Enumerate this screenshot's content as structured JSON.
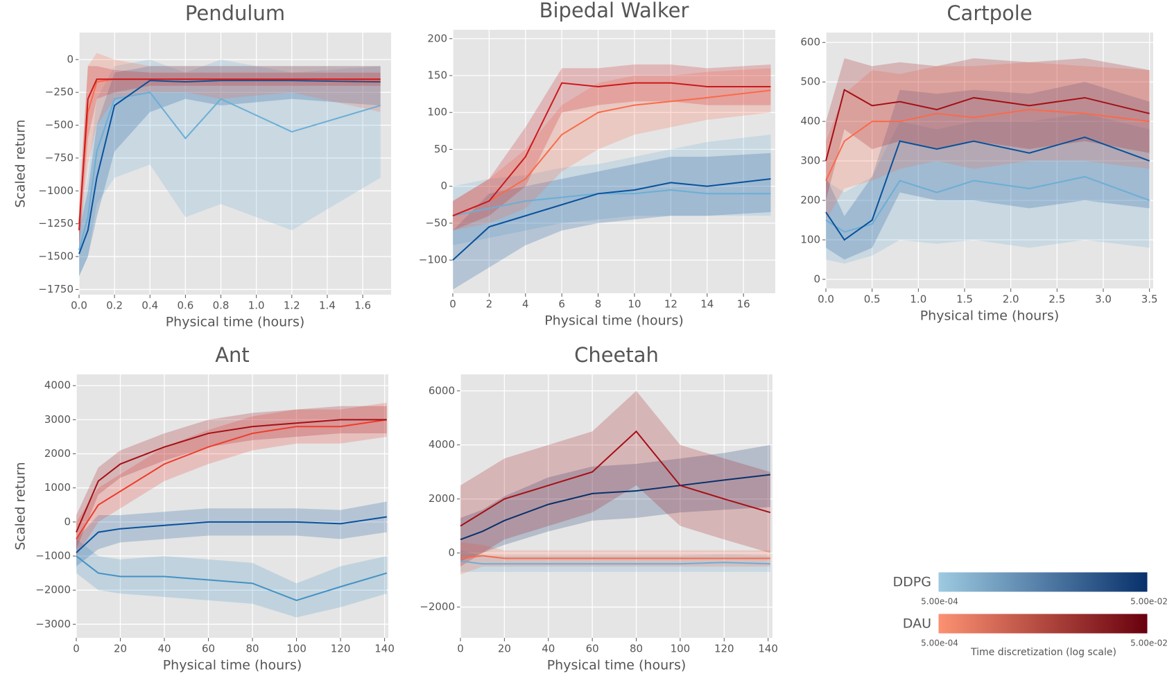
{
  "chart_data": [
    {
      "type": "line",
      "title": "Pendulum",
      "xlabel": "Physical time (hours)",
      "ylabel": "Scaled return",
      "x": [
        0,
        0.05,
        0.1,
        0.2,
        0.4,
        0.6,
        0.8,
        1.2,
        1.7
      ],
      "xlim": [
        0,
        1.76
      ],
      "ylim": [
        -1790,
        205
      ],
      "xticks": [
        {
          "value": 0,
          "label": "0.0"
        },
        0.2,
        0.4,
        0.6,
        0.8,
        {
          "value": 1,
          "label": "1.0"
        },
        1.2,
        1.4,
        1.6
      ],
      "yticks": [
        0,
        {
          "value": -250,
          "label": "−250"
        },
        {
          "value": -500,
          "label": "−500"
        },
        {
          "value": -750,
          "label": "−750"
        },
        {
          "value": -1000,
          "label": "−1000"
        },
        {
          "value": -1250,
          "label": "−1250"
        },
        {
          "value": -1500,
          "label": "−1500"
        },
        {
          "value": -1750,
          "label": "−1750"
        }
      ],
      "grid": true,
      "series": [
        {
          "color": "#6baed6",
          "values": [
            -1450,
            -1200,
            -700,
            -300,
            -250,
            -600,
            -300,
            -550,
            -350
          ],
          "lower": [
            -1650,
            -1500,
            -1100,
            -900,
            -800,
            -1200,
            -1100,
            -1300,
            -900
          ],
          "upper": [
            -1250,
            -900,
            -300,
            -50,
            0,
            -100,
            0,
            -100,
            -50
          ]
        },
        {
          "color": "#08519c",
          "values": [
            -1480,
            -1300,
            -900,
            -350,
            -160,
            -170,
            -160,
            -160,
            -170
          ],
          "lower": [
            -1650,
            -1500,
            -1200,
            -700,
            -400,
            -300,
            -350,
            -300,
            -350
          ],
          "upper": [
            -1300,
            -1000,
            -500,
            -100,
            -50,
            -50,
            -50,
            -50,
            -50
          ]
        },
        {
          "color": "#fb6a4a",
          "values": [
            -1250,
            -400,
            -170,
            -150,
            -150,
            -150,
            -150,
            -150,
            -160
          ],
          "lower": [
            -1400,
            -800,
            -500,
            -300,
            -250,
            -250,
            -300,
            -250,
            -400
          ],
          "upper": [
            -1100,
            -50,
            50,
            0,
            -50,
            -50,
            -50,
            -50,
            -50
          ]
        },
        {
          "color": "#cb181d",
          "values": [
            -1300,
            -300,
            -150,
            -150,
            -150,
            -150,
            -150,
            -150,
            -150
          ],
          "lower": [
            -1450,
            -600,
            -300,
            -250,
            -200,
            -200,
            -200,
            -200,
            -200
          ],
          "upper": [
            -1150,
            -50,
            -50,
            -80,
            -100,
            -100,
            -100,
            -100,
            -100
          ]
        }
      ]
    },
    {
      "type": "line",
      "title": "Bipedal Walker",
      "xlabel": "Physical time (hours)",
      "x": [
        0,
        2,
        4,
        6,
        8,
        10,
        12,
        14,
        17.5
      ],
      "xlim": [
        0,
        17.75
      ],
      "ylim": [
        -145,
        212
      ],
      "xticks": [
        0,
        2,
        4,
        6,
        8,
        10,
        12,
        14,
        16
      ],
      "yticks": [
        200,
        150,
        100,
        50,
        0,
        {
          "value": -50,
          "label": "−50"
        },
        {
          "value": -100,
          "label": "−100"
        }
      ],
      "grid": true,
      "series": [
        {
          "color": "#6baed6",
          "values": [
            -40,
            -30,
            -20,
            -15,
            -10,
            -10,
            -5,
            -10,
            -10
          ],
          "lower": [
            -80,
            -70,
            -60,
            -50,
            -45,
            -40,
            -40,
            -40,
            -40
          ],
          "upper": [
            0,
            10,
            15,
            25,
            30,
            40,
            50,
            60,
            70
          ]
        },
        {
          "color": "#08519c",
          "values": [
            -100,
            -55,
            -40,
            -25,
            -10,
            -5,
            5,
            0,
            10
          ],
          "lower": [
            -140,
            -110,
            -80,
            -60,
            -50,
            -45,
            -40,
            -40,
            -35
          ],
          "upper": [
            -60,
            -10,
            0,
            10,
            20,
            30,
            40,
            40,
            45
          ]
        },
        {
          "color": "#fb6a4a",
          "values": [
            -40,
            -20,
            10,
            70,
            100,
            110,
            115,
            120,
            130
          ],
          "lower": [
            -60,
            -50,
            -30,
            20,
            50,
            70,
            80,
            90,
            100
          ],
          "upper": [
            -20,
            10,
            50,
            110,
            140,
            150,
            150,
            155,
            160
          ]
        },
        {
          "color": "#cb181d",
          "values": [
            -40,
            -20,
            40,
            140,
            135,
            140,
            140,
            135,
            135
          ],
          "lower": [
            -60,
            -40,
            0,
            100,
            110,
            115,
            115,
            110,
            110
          ],
          "upper": [
            -20,
            10,
            80,
            160,
            160,
            165,
            165,
            160,
            165
          ]
        }
      ]
    },
    {
      "type": "line",
      "title": "Cartpole",
      "xlabel": "Physical time (hours)",
      "x": [
        0,
        0.2,
        0.5,
        0.8,
        1.2,
        1.6,
        2.2,
        2.8,
        3.5
      ],
      "xlim": [
        0,
        3.54
      ],
      "ylim": [
        -23,
        625
      ],
      "xticks": [
        {
          "value": 0,
          "label": "0.0"
        },
        0.5,
        {
          "value": 1,
          "label": "1.0"
        },
        1.5,
        {
          "value": 2,
          "label": "2.0"
        },
        2.5,
        {
          "value": 3,
          "label": "3.0"
        },
        3.5
      ],
      "yticks": [
        600,
        500,
        400,
        300,
        200,
        100,
        0
      ],
      "grid": true,
      "series": [
        {
          "color": "#6baed6",
          "values": [
            150,
            120,
            140,
            250,
            220,
            250,
            230,
            260,
            200
          ],
          "lower": [
            50,
            40,
            60,
            100,
            90,
            100,
            80,
            100,
            80
          ],
          "upper": [
            250,
            220,
            260,
            400,
            380,
            400,
            400,
            420,
            380
          ]
        },
        {
          "color": "#08519c",
          "values": [
            170,
            100,
            150,
            350,
            330,
            350,
            320,
            360,
            300
          ],
          "lower": [
            80,
            50,
            80,
            220,
            200,
            200,
            180,
            200,
            180
          ],
          "upper": [
            260,
            160,
            260,
            480,
            470,
            480,
            470,
            500,
            450
          ]
        },
        {
          "color": "#fb6a4a",
          "values": [
            250,
            350,
            400,
            400,
            420,
            410,
            430,
            420,
            400
          ],
          "lower": [
            150,
            230,
            250,
            280,
            300,
            280,
            300,
            300,
            280
          ],
          "upper": [
            350,
            470,
            530,
            520,
            540,
            540,
            550,
            540,
            530
          ]
        },
        {
          "color": "#a50f15",
          "values": [
            300,
            480,
            440,
            450,
            430,
            460,
            440,
            460,
            420
          ],
          "lower": [
            200,
            380,
            330,
            350,
            330,
            350,
            330,
            350,
            320
          ],
          "upper": [
            400,
            560,
            540,
            550,
            540,
            560,
            550,
            560,
            530
          ]
        }
      ]
    },
    {
      "type": "line",
      "title": "Ant",
      "xlabel": "Physical time (hours)",
      "ylabel": "Scaled return",
      "x": [
        0,
        10,
        20,
        40,
        60,
        80,
        100,
        120,
        141
      ],
      "xlim": [
        0,
        141.7
      ],
      "ylim": [
        -3400,
        4330
      ],
      "xticks": [
        0,
        20,
        40,
        60,
        80,
        100,
        120,
        140
      ],
      "yticks": [
        4000,
        3000,
        2000,
        1000,
        0,
        {
          "value": -1000,
          "label": "−1000"
        },
        {
          "value": -2000,
          "label": "−2000"
        },
        {
          "value": -3000,
          "label": "−3000"
        }
      ],
      "grid": true,
      "series": [
        {
          "color": "#4292c6",
          "values": [
            -1000,
            -1500,
            -1600,
            -1600,
            -1700,
            -1800,
            -2300,
            -1900,
            -1500
          ],
          "lower": [
            -1500,
            -2000,
            -2100,
            -2200,
            -2300,
            -2400,
            -2800,
            -2500,
            -2100
          ],
          "upper": [
            -500,
            -1000,
            -1100,
            -1000,
            -1100,
            -1200,
            -1800,
            -1300,
            -1000
          ]
        },
        {
          "color": "#08519c",
          "values": [
            -900,
            -300,
            -200,
            -100,
            0,
            0,
            0,
            -50,
            150
          ],
          "lower": [
            -1300,
            -800,
            -600,
            -500,
            -400,
            -400,
            -400,
            -500,
            -300
          ],
          "upper": [
            -500,
            200,
            200,
            300,
            400,
            400,
            400,
            350,
            600
          ]
        },
        {
          "color": "#ef3b2c",
          "values": [
            -500,
            500,
            900,
            1700,
            2200,
            2600,
            2800,
            2800,
            3000
          ],
          "lower": [
            -1000,
            0,
            400,
            1200,
            1700,
            2100,
            2300,
            2300,
            2500
          ],
          "upper": [
            0,
            1000,
            1400,
            2200,
            2700,
            3100,
            3300,
            3300,
            3500
          ]
        },
        {
          "color": "#a50f15",
          "values": [
            -300,
            1200,
            1700,
            2200,
            2600,
            2800,
            2900,
            3000,
            3000
          ],
          "lower": [
            -800,
            800,
            1300,
            1800,
            2200,
            2400,
            2500,
            2600,
            2600
          ],
          "upper": [
            200,
            1600,
            2100,
            2600,
            3000,
            3200,
            3300,
            3400,
            3400
          ]
        }
      ]
    },
    {
      "type": "line",
      "title": "Cheetah",
      "xlabel": "Physical time (hours)",
      "x": [
        0,
        10,
        20,
        40,
        60,
        80,
        100,
        120,
        141
      ],
      "xlim": [
        0,
        142
      ],
      "ylim": [
        -3140,
        6610
      ],
      "xticks": [
        0,
        20,
        40,
        60,
        80,
        100,
        120,
        140
      ],
      "yticks": [
        6000,
        4000,
        2000,
        0,
        {
          "value": -2000,
          "label": "−2000"
        }
      ],
      "grid": true,
      "series": [
        {
          "color": "#6baed6",
          "values": [
            -300,
            -400,
            -400,
            -400,
            -400,
            -400,
            -400,
            -350,
            -400
          ],
          "lower": [
            -700,
            -700,
            -700,
            -700,
            -700,
            -700,
            -700,
            -700,
            -700
          ],
          "upper": [
            100,
            -100,
            -100,
            -100,
            -100,
            -100,
            -100,
            -50,
            -100
          ]
        },
        {
          "color": "#08306b",
          "values": [
            500,
            800,
            1200,
            1800,
            2200,
            2300,
            2500,
            2700,
            2900
          ],
          "lower": [
            -300,
            0,
            300,
            800,
            1200,
            1300,
            1500,
            1600,
            1700
          ],
          "upper": [
            1300,
            1600,
            2100,
            2800,
            3200,
            3300,
            3500,
            3700,
            4000
          ]
        },
        {
          "color": "#fb6a4a",
          "values": [
            -200,
            -100,
            -200,
            -200,
            -200,
            -200,
            -200,
            -200,
            -200
          ],
          "lower": [
            -800,
            -500,
            -500,
            -500,
            -500,
            -500,
            -500,
            -500,
            -500
          ],
          "upper": [
            400,
            300,
            100,
            100,
            100,
            100,
            100,
            100,
            100
          ]
        },
        {
          "color": "#a50f15",
          "values": [
            1000,
            1500,
            2000,
            2500,
            3000,
            4500,
            2500,
            2000,
            1500
          ],
          "lower": [
            -500,
            0,
            500,
            1000,
            1500,
            2500,
            1000,
            500,
            0
          ],
          "upper": [
            2500,
            3000,
            3500,
            4000,
            4500,
            6000,
            4000,
            3500,
            3000
          ]
        }
      ]
    }
  ],
  "legend": {
    "items": [
      {
        "label": "DDPG",
        "colors": [
          "#9ecae1",
          "#08306b"
        ]
      },
      {
        "label": "DAU",
        "colors": [
          "#fc9272",
          "#67000d"
        ]
      }
    ],
    "min_label": "5.00e-04",
    "max_label": "5.00e-02",
    "label": "Time discretization (log scale)"
  }
}
